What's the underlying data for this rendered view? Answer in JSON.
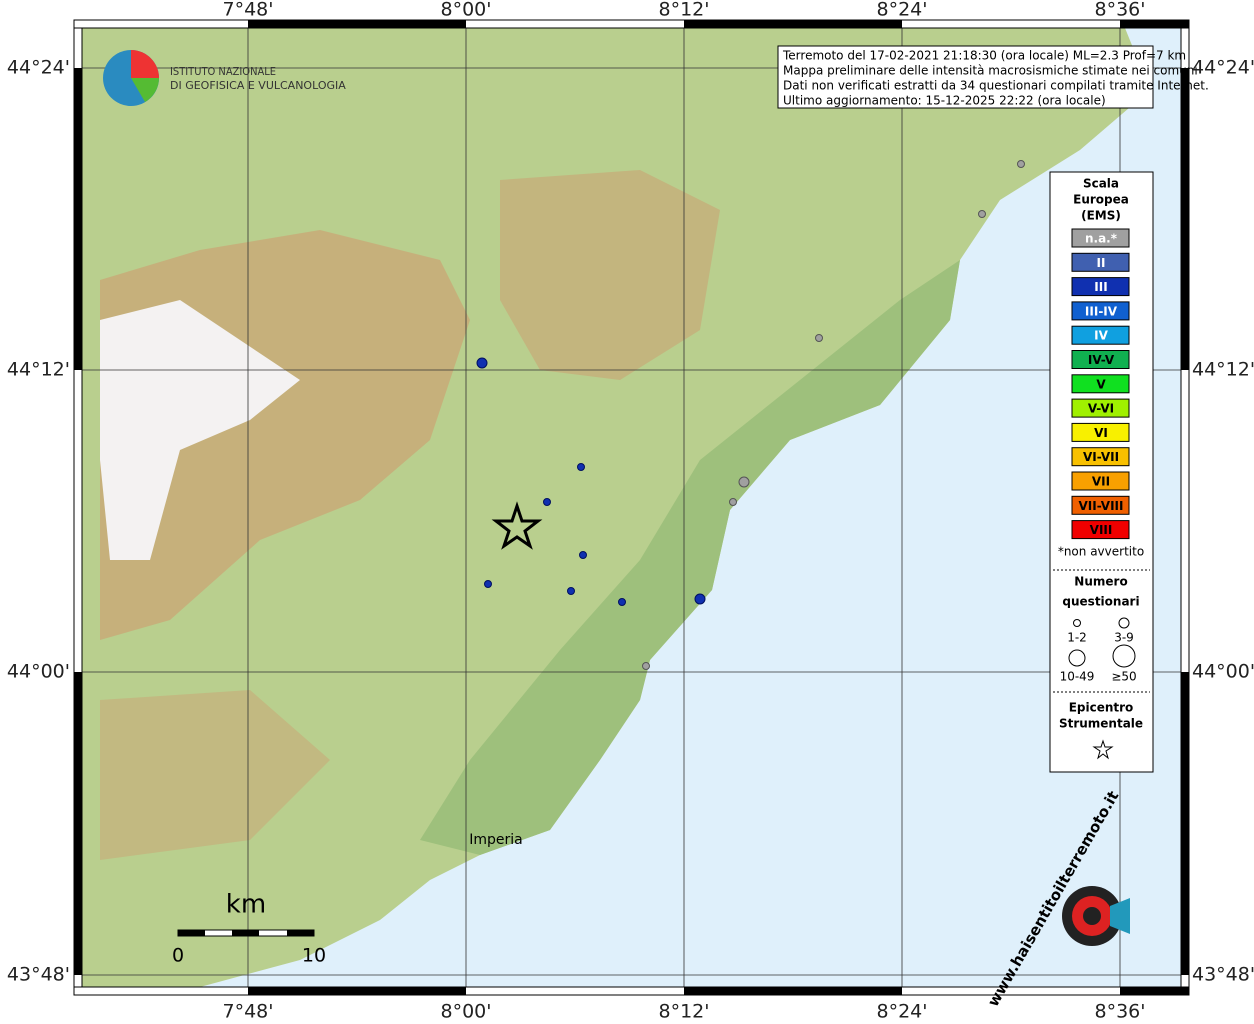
{
  "header": {
    "org_line1": "ISTITUTO NAZIONALE",
    "org_line2": "DI GEOFISICA E VULCANOLOGIA"
  },
  "info": [
    "Terremoto del 17-02-2021 21:18:30 (ora locale) ML=2.3 Prof=7 km",
    "Mappa preliminare delle intensità macrosismiche stimate nei comuni",
    "Dati non verificati estratti da 34 questionari compilati tramite Internet.",
    "Ultimo aggiornamento: 15-12-2025 22:22 (ora locale)"
  ],
  "axes": {
    "lon_labels": [
      "7°48'",
      "8°00'",
      "8°12'",
      "8°24'",
      "8°36'"
    ],
    "lat_labels": [
      "44°24'",
      "44°12'",
      "44°00'",
      "43°48'"
    ]
  },
  "places": [
    "Imperia"
  ],
  "scale_bar": {
    "unit": "km",
    "start": "0",
    "end": "10"
  },
  "legend": {
    "title": [
      "Scala",
      "Europea",
      "(EMS)"
    ],
    "items": [
      {
        "label": "n.a.*",
        "color": "#a0a0a0"
      },
      {
        "label": "II",
        "color": "#4060b0"
      },
      {
        "label": "III",
        "color": "#1030b0"
      },
      {
        "label": "III-IV",
        "color": "#1060d0"
      },
      {
        "label": "IV",
        "color": "#10a0e0"
      },
      {
        "label": "IV-V",
        "color": "#10b050"
      },
      {
        "label": "V",
        "color": "#10e020"
      },
      {
        "label": "V-VI",
        "color": "#a0f000"
      },
      {
        "label": "VI",
        "color": "#f8f000"
      },
      {
        "label": "VI-VII",
        "color": "#f8c000"
      },
      {
        "label": "VII",
        "color": "#f8a000"
      },
      {
        "label": "VII-VIII",
        "color": "#f06000"
      },
      {
        "label": "VIII",
        "color": "#f00000"
      }
    ],
    "note": "*non avvertito",
    "count_title": [
      "Numero",
      "questionari"
    ],
    "counts": [
      "1-2",
      "3-9",
      "10-49",
      "≥50"
    ],
    "epi_title": [
      "Epicentro",
      "Strumentale"
    ]
  },
  "footer": {
    "site": "www.haisentitoilterremoto.it"
  }
}
